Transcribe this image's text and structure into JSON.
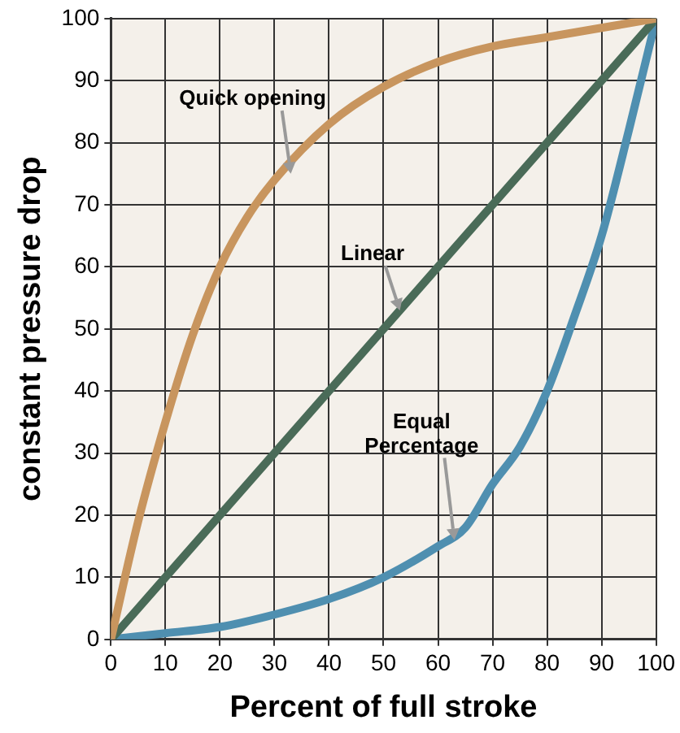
{
  "chart_data": {
    "type": "line",
    "xlabel": "Percent of full stroke",
    "ylabel": "constant pressure drop",
    "xlim": [
      0,
      100
    ],
    "ylim": [
      0,
      100
    ],
    "xticks": [
      0,
      10,
      20,
      30,
      40,
      50,
      60,
      70,
      80,
      90,
      100
    ],
    "yticks": [
      0,
      10,
      20,
      30,
      40,
      50,
      60,
      70,
      80,
      90,
      100
    ],
    "grid": true,
    "marker": "none",
    "line_style": "solid",
    "series": [
      {
        "name": "Quick opening",
        "color": "#c8955e",
        "x": [
          0,
          5,
          10,
          15,
          20,
          25,
          30,
          40,
          50,
          60,
          70,
          80,
          90,
          100
        ],
        "values": [
          0,
          19,
          35,
          49,
          60,
          68,
          74,
          83,
          89,
          93,
          95.5,
          97,
          98.5,
          100
        ]
      },
      {
        "name": "Linear",
        "color": "#4a6b58",
        "x": [
          0,
          100
        ],
        "values": [
          0,
          100
        ]
      },
      {
        "name": "Equal Percentage",
        "color": "#4f8fb0",
        "x": [
          0,
          10,
          20,
          30,
          40,
          50,
          60,
          65,
          70,
          75,
          80,
          85,
          90,
          95,
          100
        ],
        "values": [
          0,
          1,
          2,
          4,
          6.5,
          10,
          15,
          18,
          25,
          31,
          40,
          52,
          65,
          82,
          100
        ]
      }
    ]
  }
}
